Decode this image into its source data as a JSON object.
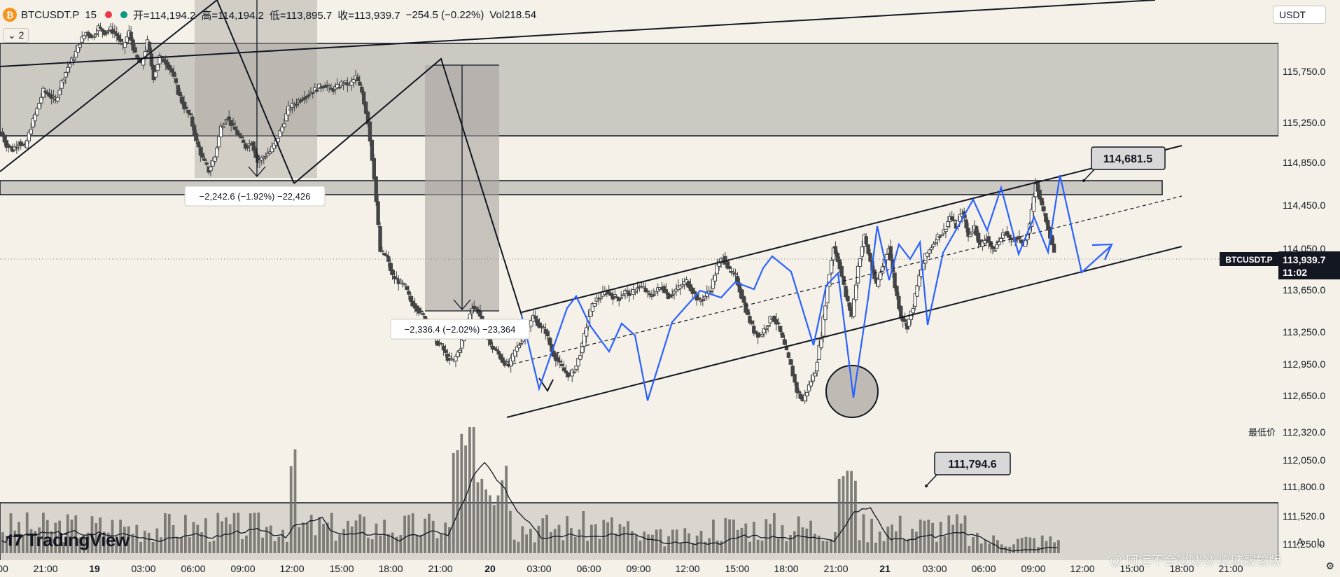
{
  "header": {
    "symbol": "BTCUSDT.P",
    "interval": "15",
    "ohlc_partial": "开=114,194.2",
    "high": "高=114,194.2",
    "low": "低=113,895.7",
    "close": "收=113,939.7",
    "change": "−254.5 (−0.22%)",
    "volume": "Vol218.54",
    "indicator_count": "2",
    "currency": "USDT"
  },
  "brand": {
    "name": "TradingView"
  },
  "watermark": "@ 阿运不会嘤嘤嘤-愿赌服输版",
  "price_axis": {
    "ticks": [
      "115,750.0",
      "115,250.0",
      "114,850.0",
      "114,450.0",
      "114,050.0",
      "113,650.0",
      "113,250.0",
      "112,950.0",
      "112,650.0",
      "112,320.0",
      "112,050.0",
      "111,800.0",
      "111,520.0",
      "111,250.0"
    ],
    "last_price_symbol": "BTCUSDT.P",
    "last_price": "113,939.7",
    "countdown": "11:02",
    "low_label": "最低价"
  },
  "time_axis": {
    "ticks": [
      "00",
      "21:00",
      "19",
      "03:00",
      "06:00",
      "09:00",
      "12:00",
      "15:00",
      "18:00",
      "21:00",
      "20",
      "03:00",
      "06:00",
      "09:00",
      "12:00",
      "15:00",
      "18:00",
      "21:00",
      "21",
      "03:00",
      "06:00",
      "09:00",
      "12:00",
      "15:00",
      "18:00",
      "21:00"
    ]
  },
  "annotations": {
    "measure1": "−2,242.6 (−1.92%) −22,426",
    "measure2": "−2,336.4 (−2.02%) −23,364",
    "callout_high": "114,681.5",
    "callout_low": "111,794.6"
  },
  "buttons": {
    "auto": "A",
    "log": "L"
  },
  "colors": {
    "background": "#f5f1e8",
    "projection": "#2962ff",
    "zone": "#c8c4be",
    "candle": "#444444"
  },
  "chart_data": {
    "type": "candlestick",
    "symbol": "BTCUSDT.P",
    "interval": "15",
    "ylim": [
      111250,
      116200
    ],
    "price_series_approx": [
      [
        0,
        115150
      ],
      [
        0.5,
        115020
      ],
      [
        1,
        114970
      ],
      [
        1.5,
        115050
      ],
      [
        2,
        114990
      ],
      [
        2.5,
        115200
      ],
      [
        3,
        115380
      ],
      [
        3.5,
        115560
      ],
      [
        4,
        115520
      ],
      [
        4.5,
        115460
      ],
      [
        5,
        115650
      ],
      [
        5.5,
        115800
      ],
      [
        6,
        115900
      ],
      [
        6.5,
        116050
      ],
      [
        7,
        116150
      ],
      [
        7.5,
        116100
      ],
      [
        8,
        116200
      ],
      [
        8.5,
        116150
      ],
      [
        9,
        116180
      ],
      [
        9.5,
        116120
      ],
      [
        10,
        116000
      ],
      [
        10.5,
        116150
      ],
      [
        11,
        115920
      ],
      [
        11.5,
        115820
      ],
      [
        12,
        116050
      ],
      [
        12.5,
        115700
      ],
      [
        13,
        115900
      ],
      [
        13.5,
        115850
      ],
      [
        14,
        115750
      ],
      [
        14.5,
        115550
      ],
      [
        15,
        115400
      ],
      [
        15.5,
        115300
      ],
      [
        16,
        115050
      ],
      [
        16.5,
        114880
      ],
      [
        17,
        114760
      ],
      [
        17.5,
        114900
      ],
      [
        18,
        115200
      ],
      [
        18.5,
        115300
      ],
      [
        19,
        115200
      ],
      [
        19.5,
        115100
      ],
      [
        20,
        115000
      ],
      [
        20.5,
        115050
      ],
      [
        21,
        114850
      ],
      [
        21.5,
        114900
      ],
      [
        22,
        114950
      ],
      [
        22.5,
        115050
      ],
      [
        23,
        115200
      ],
      [
        23.5,
        115380
      ],
      [
        24,
        115430
      ],
      [
        24.5,
        115480
      ],
      [
        25,
        115520
      ],
      [
        25.5,
        115560
      ],
      [
        26,
        115600
      ],
      [
        26.5,
        115620
      ],
      [
        27,
        115570
      ],
      [
        27.5,
        115600
      ],
      [
        28,
        115650
      ],
      [
        28.5,
        115620
      ],
      [
        29,
        115700
      ],
      [
        29.5,
        115550
      ],
      [
        30,
        115250
      ],
      [
        30.5,
        114700
      ],
      [
        31,
        113950
      ],
      [
        31.5,
        113900
      ],
      [
        32,
        113700
      ],
      [
        32.5,
        113650
      ],
      [
        33,
        113600
      ],
      [
        33.5,
        113450
      ],
      [
        34,
        113380
      ],
      [
        34.5,
        113300
      ],
      [
        35,
        113200
      ],
      [
        35.5,
        113050
      ],
      [
        36,
        113000
      ],
      [
        36.5,
        112880
      ],
      [
        37,
        112850
      ],
      [
        37.5,
        112980
      ],
      [
        38,
        113200
      ],
      [
        38.5,
        113400
      ],
      [
        39,
        113350
      ],
      [
        39.5,
        113200
      ],
      [
        40,
        113000
      ],
      [
        40.5,
        112950
      ],
      [
        41,
        112850
      ],
      [
        41.5,
        112800
      ],
      [
        42,
        112950
      ],
      [
        42.5,
        113050
      ],
      [
        43,
        113150
      ],
      [
        43.5,
        113300
      ],
      [
        44,
        113200
      ],
      [
        44.5,
        113150
      ],
      [
        45,
        112950
      ],
      [
        45.5,
        112850
      ],
      [
        46,
        112750
      ],
      [
        46.5,
        112700
      ],
      [
        47,
        112800
      ],
      [
        47.5,
        113000
      ],
      [
        48,
        113300
      ],
      [
        48.5,
        113450
      ],
      [
        49,
        113500
      ],
      [
        49.5,
        113550
      ],
      [
        50,
        113500
      ],
      [
        50.5,
        113480
      ],
      [
        51,
        113550
      ],
      [
        51.5,
        113520
      ],
      [
        52,
        113600
      ],
      [
        52.5,
        113580
      ],
      [
        53,
        113500
      ],
      [
        53.5,
        113550
      ],
      [
        54,
        113600
      ],
      [
        54.5,
        113500
      ],
      [
        55,
        113550
      ],
      [
        55.5,
        113600
      ],
      [
        56,
        113650
      ],
      [
        56.5,
        113550
      ],
      [
        57,
        113450
      ],
      [
        57.5,
        113500
      ],
      [
        58,
        113580
      ],
      [
        58.5,
        113800
      ],
      [
        59,
        113900
      ],
      [
        59.5,
        113750
      ],
      [
        60,
        113700
      ],
      [
        60.5,
        113500
      ],
      [
        61,
        113300
      ],
      [
        61.5,
        113150
      ],
      [
        62,
        113100
      ],
      [
        62.5,
        113200
      ],
      [
        63,
        113300
      ],
      [
        63.5,
        113200
      ],
      [
        64,
        113000
      ],
      [
        64.5,
        112800
      ],
      [
        65,
        112550
      ],
      [
        65.5,
        112450
      ],
      [
        66,
        112600
      ],
      [
        66.5,
        112750
      ],
      [
        67,
        113100
      ],
      [
        67.5,
        113600
      ],
      [
        68,
        114000
      ],
      [
        68.5,
        113800
      ],
      [
        69,
        113500
      ],
      [
        69.5,
        113300
      ],
      [
        70,
        113800
      ],
      [
        70.5,
        114100
      ],
      [
        71,
        113850
      ],
      [
        71.5,
        113600
      ],
      [
        72,
        113800
      ],
      [
        72.5,
        114000
      ],
      [
        73,
        113600
      ],
      [
        73.5,
        113300
      ],
      [
        74,
        113200
      ],
      [
        74.5,
        113400
      ],
      [
        75,
        113700
      ],
      [
        75.5,
        113900
      ],
      [
        76,
        114000
      ],
      [
        76.5,
        114100
      ],
      [
        77,
        114150
      ],
      [
        77.5,
        114300
      ],
      [
        78,
        114200
      ],
      [
        78.5,
        114350
      ],
      [
        79,
        114100
      ],
      [
        79.5,
        114200
      ],
      [
        80,
        114000
      ],
      [
        80.5,
        114100
      ],
      [
        81,
        113950
      ],
      [
        81.5,
        114050
      ],
      [
        82,
        114150
      ],
      [
        82.5,
        114050
      ],
      [
        83,
        114100
      ],
      [
        83.5,
        114000
      ],
      [
        84,
        114200
      ],
      [
        84.5,
        114650
      ],
      [
        85,
        114400
      ],
      [
        85.5,
        114194
      ],
      [
        86,
        113940
      ]
    ],
    "volume_profile": "volume bars at bottom with moving average line",
    "zones": [
      {
        "name": "resistance zone",
        "from": 115180,
        "to": 115980
      },
      {
        "name": "narrow zone",
        "from": 114550,
        "to": 114680
      }
    ],
    "channel": {
      "type": "ascending",
      "upper_from": 113720,
      "upper_to": 114920,
      "lower_from": 112300,
      "lower_to": 113900
    },
    "callouts": [
      114681.5,
      111794.6
    ],
    "last_price": 113939.7
  }
}
